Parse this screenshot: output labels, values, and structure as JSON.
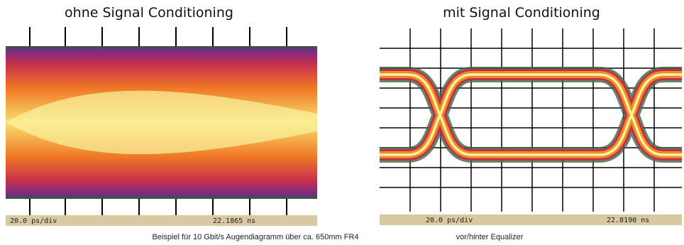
{
  "panels": [
    {
      "title": "ohne Signal Conditioning",
      "timebase": "20.0 ps/div",
      "position": "22.1865 ns"
    },
    {
      "title": "mit Signal Conditioning",
      "timebase": "20.0 ps/div",
      "position": "22.8190 ns"
    }
  ],
  "caption": {
    "text": "Beispiel für 10 Gbit/s Augendiagramm über ca. 650mm FR4",
    "note": "vor/hinter Equalizer"
  }
}
